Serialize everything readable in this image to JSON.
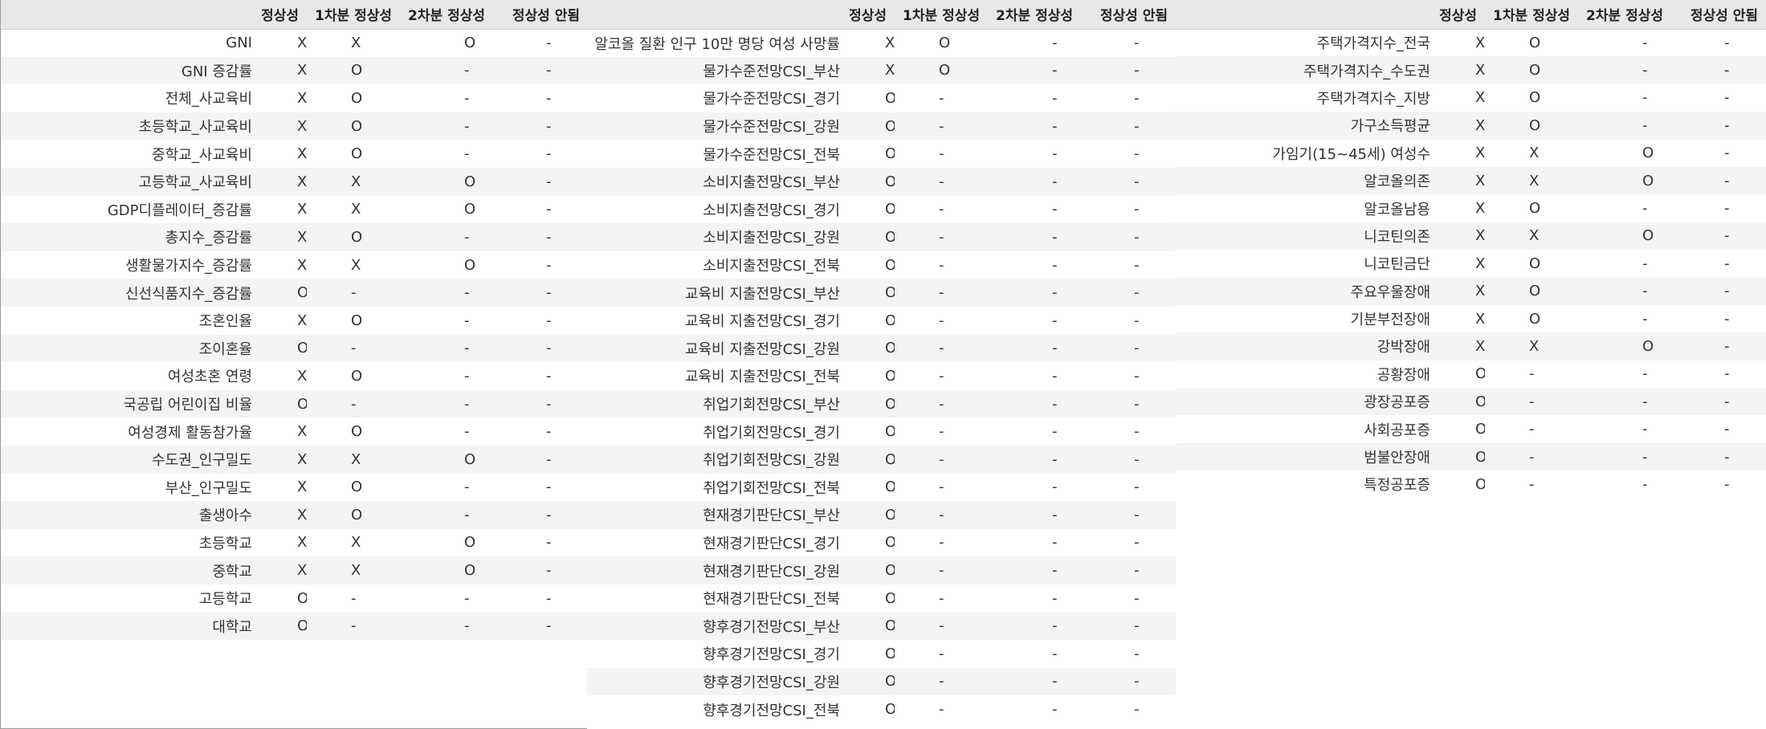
{
  "header": {
    "col1": "정상성",
    "col2": "1차분 정상성",
    "col3": "2차분 정상성",
    "col4": "정상성 안됨"
  },
  "panels": [
    {
      "rows": [
        {
          "label": "GNI",
          "c1": "X",
          "c2": "X",
          "c3": "O",
          "c4": "-"
        },
        {
          "label": "GNI 증감률",
          "c1": "X",
          "c2": "O",
          "c3": "-",
          "c4": "-"
        },
        {
          "label": "전체_사교육비",
          "c1": "X",
          "c2": "O",
          "c3": "-",
          "c4": "-"
        },
        {
          "label": "초등학교_사교육비",
          "c1": "X",
          "c2": "O",
          "c3": "-",
          "c4": "-"
        },
        {
          "label": "중학교_사교육비",
          "c1": "X",
          "c2": "O",
          "c3": "-",
          "c4": "-"
        },
        {
          "label": "고등학교_사교육비",
          "c1": "X",
          "c2": "X",
          "c3": "O",
          "c4": "-"
        },
        {
          "label": "GDP디플레이터_증감률",
          "c1": "X",
          "c2": "X",
          "c3": "O",
          "c4": "-"
        },
        {
          "label": "총지수_증감률",
          "c1": "X",
          "c2": "O",
          "c3": "-",
          "c4": "-"
        },
        {
          "label": "생활물가지수_증감률",
          "c1": "X",
          "c2": "X",
          "c3": "O",
          "c4": "-"
        },
        {
          "label": "신선식품지수_증감률",
          "c1": "O",
          "c2": "-",
          "c3": "-",
          "c4": "-"
        },
        {
          "label": "조혼인율",
          "c1": "X",
          "c2": "O",
          "c3": "-",
          "c4": "-"
        },
        {
          "label": "조이혼율",
          "c1": "O",
          "c2": "-",
          "c3": "-",
          "c4": "-"
        },
        {
          "label": "여성초혼 연령",
          "c1": "X",
          "c2": "O",
          "c3": "-",
          "c4": "-"
        },
        {
          "label": "국공립 어린이집 비율",
          "c1": "O",
          "c2": "-",
          "c3": "-",
          "c4": "-"
        },
        {
          "label": "여성경제 활동참가율",
          "c1": "X",
          "c2": "O",
          "c3": "-",
          "c4": "-"
        },
        {
          "label": "수도권_인구밀도",
          "c1": "X",
          "c2": "X",
          "c3": "O",
          "c4": "-"
        },
        {
          "label": "부산_인구밀도",
          "c1": "X",
          "c2": "O",
          "c3": "-",
          "c4": "-"
        },
        {
          "label": "출생아수",
          "c1": "X",
          "c2": "O",
          "c3": "-",
          "c4": "-"
        },
        {
          "label": "초등학교",
          "c1": "X",
          "c2": "X",
          "c3": "O",
          "c4": "-"
        },
        {
          "label": "중학교",
          "c1": "X",
          "c2": "X",
          "c3": "O",
          "c4": "-"
        },
        {
          "label": "고등학교",
          "c1": "O",
          "c2": "-",
          "c3": "-",
          "c4": "-"
        },
        {
          "label": "대학교",
          "c1": "O",
          "c2": "-",
          "c3": "-",
          "c4": "-"
        }
      ]
    },
    {
      "rows": [
        {
          "label": "알코올 질환 인구 10만 명당 여성 사망률",
          "c1": "X",
          "c2": "O",
          "c3": "-",
          "c4": "-"
        },
        {
          "label": "물가수준전망CSI_부산",
          "c1": "X",
          "c2": "O",
          "c3": "-",
          "c4": "-"
        },
        {
          "label": "물가수준전망CSI_경기",
          "c1": "O",
          "c2": "-",
          "c3": "-",
          "c4": "-"
        },
        {
          "label": "물가수준전망CSI_강원",
          "c1": "O",
          "c2": "-",
          "c3": "-",
          "c4": "-"
        },
        {
          "label": "물가수준전망CSI_전북",
          "c1": "O",
          "c2": "-",
          "c3": "-",
          "c4": "-"
        },
        {
          "label": "소비지출전망CSI_부산",
          "c1": "O",
          "c2": "-",
          "c3": "-",
          "c4": "-"
        },
        {
          "label": "소비지출전망CSI_경기",
          "c1": "O",
          "c2": "-",
          "c3": "-",
          "c4": "-"
        },
        {
          "label": "소비지출전망CSI_강원",
          "c1": "O",
          "c2": "-",
          "c3": "-",
          "c4": "-"
        },
        {
          "label": "소비지출전망CSI_전북",
          "c1": "O",
          "c2": "-",
          "c3": "-",
          "c4": "-"
        },
        {
          "label": "교육비 지출전망CSI_부산",
          "c1": "O",
          "c2": "-",
          "c3": "-",
          "c4": "-"
        },
        {
          "label": "교육비 지출전망CSI_경기",
          "c1": "O",
          "c2": "-",
          "c3": "-",
          "c4": "-"
        },
        {
          "label": "교육비 지출전망CSI_강원",
          "c1": "O",
          "c2": "-",
          "c3": "-",
          "c4": "-"
        },
        {
          "label": "교육비 지출전망CSI_전북",
          "c1": "O",
          "c2": "-",
          "c3": "-",
          "c4": "-"
        },
        {
          "label": "취업기회전망CSI_부산",
          "c1": "O",
          "c2": "-",
          "c3": "-",
          "c4": "-"
        },
        {
          "label": "취업기회전망CSI_경기",
          "c1": "O",
          "c2": "-",
          "c3": "-",
          "c4": "-"
        },
        {
          "label": "취업기회전망CSI_강원",
          "c1": "O",
          "c2": "-",
          "c3": "-",
          "c4": "-"
        },
        {
          "label": "취업기회전망CSI_전북",
          "c1": "O",
          "c2": "-",
          "c3": "-",
          "c4": "-"
        },
        {
          "label": "현재경기판단CSI_부산",
          "c1": "O",
          "c2": "-",
          "c3": "-",
          "c4": "-"
        },
        {
          "label": "현재경기판단CSI_경기",
          "c1": "O",
          "c2": "-",
          "c3": "-",
          "c4": "-"
        },
        {
          "label": "현재경기판단CSI_강원",
          "c1": "O",
          "c2": "-",
          "c3": "-",
          "c4": "-"
        },
        {
          "label": "현재경기판단CSI_전북",
          "c1": "O",
          "c2": "-",
          "c3": "-",
          "c4": "-"
        },
        {
          "label": "향후경기전망CSI_부산",
          "c1": "O",
          "c2": "-",
          "c3": "-",
          "c4": "-"
        },
        {
          "label": "향후경기전망CSI_경기",
          "c1": "O",
          "c2": "-",
          "c3": "-",
          "c4": "-"
        },
        {
          "label": "향후경기전망CSI_강원",
          "c1": "O",
          "c2": "-",
          "c3": "-",
          "c4": "-"
        },
        {
          "label": "향후경기전망CSI_전북",
          "c1": "O",
          "c2": "-",
          "c3": "-",
          "c4": "-"
        }
      ]
    },
    {
      "rows": [
        {
          "label": "주택가격지수_전국",
          "c1": "X",
          "c2": "O",
          "c3": "-",
          "c4": "-"
        },
        {
          "label": "주택가격지수_수도권",
          "c1": "X",
          "c2": "O",
          "c3": "-",
          "c4": "-"
        },
        {
          "label": "주택가격지수_지방",
          "c1": "X",
          "c2": "O",
          "c3": "-",
          "c4": "-"
        },
        {
          "label": "가구소득평균",
          "c1": "X",
          "c2": "O",
          "c3": "-",
          "c4": "-"
        },
        {
          "label": "가임기(15~45세) 여성수",
          "c1": "X",
          "c2": "X",
          "c3": "O",
          "c4": "-"
        },
        {
          "label": "알코올의존",
          "c1": "X",
          "c2": "X",
          "c3": "O",
          "c4": "-"
        },
        {
          "label": "알코올남용",
          "c1": "X",
          "c2": "O",
          "c3": "-",
          "c4": "-"
        },
        {
          "label": "니코틴의존",
          "c1": "X",
          "c2": "X",
          "c3": "O",
          "c4": "-"
        },
        {
          "label": "니코틴금단",
          "c1": "X",
          "c2": "O",
          "c3": "-",
          "c4": "-"
        },
        {
          "label": "주요우울장애",
          "c1": "X",
          "c2": "O",
          "c3": "-",
          "c4": "-"
        },
        {
          "label": "기분부전장애",
          "c1": "X",
          "c2": "O",
          "c3": "-",
          "c4": "-"
        },
        {
          "label": "강박장애",
          "c1": "X",
          "c2": "X",
          "c3": "O",
          "c4": "-"
        },
        {
          "label": "공황장애",
          "c1": "O",
          "c2": "-",
          "c3": "-",
          "c4": "-"
        },
        {
          "label": "광장공포증",
          "c1": "O",
          "c2": "-",
          "c3": "-",
          "c4": "-"
        },
        {
          "label": "사회공포증",
          "c1": "O",
          "c2": "-",
          "c3": "-",
          "c4": "-"
        },
        {
          "label": "범불안장애",
          "c1": "O",
          "c2": "-",
          "c3": "-",
          "c4": "-"
        },
        {
          "label": "특정공포증",
          "c1": "O",
          "c2": "-",
          "c3": "-",
          "c4": "-"
        }
      ]
    }
  ]
}
